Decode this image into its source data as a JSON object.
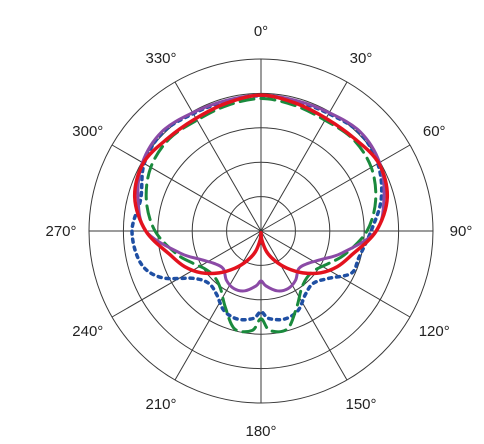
{
  "chart_data": {
    "type": "line",
    "subtype": "polar",
    "title": "",
    "xlabel": "",
    "ylabel": "",
    "grid": true,
    "legend": "none",
    "angle_direction": "clockwise",
    "zero_angle": "top",
    "r_range": [
      0,
      5
    ],
    "rings": [
      1,
      2,
      3,
      4,
      5
    ],
    "angle_ticks": [
      {
        "deg": 0,
        "label": "0°"
      },
      {
        "deg": 30,
        "label": "30°"
      },
      {
        "deg": 60,
        "label": "60°"
      },
      {
        "deg": 90,
        "label": "90°"
      },
      {
        "deg": 120,
        "label": "120°"
      },
      {
        "deg": 150,
        "label": "150°"
      },
      {
        "deg": 180,
        "label": "180°"
      },
      {
        "deg": 210,
        "label": "210°"
      },
      {
        "deg": 240,
        "label": "240°"
      },
      {
        "deg": 270,
        "label": "270°"
      },
      {
        "deg": 300,
        "label": "300°"
      },
      {
        "deg": 330,
        "label": "330°"
      }
    ],
    "series": [
      {
        "color": "#1f4fa3",
        "dash": "dotted",
        "theta": [
          0,
          15,
          30,
          45,
          60,
          75,
          90,
          105,
          115,
          125,
          135,
          145,
          155,
          165,
          175,
          180,
          185,
          195,
          205,
          215,
          225,
          235,
          245,
          255,
          270,
          285,
          300,
          315,
          330,
          345
        ],
        "r": [
          3.93,
          3.91,
          3.94,
          4.05,
          3.92,
          3.62,
          3.2,
          2.95,
          2.9,
          2.4,
          2.15,
          2.25,
          2.55,
          2.65,
          2.55,
          2.35,
          2.55,
          2.65,
          2.55,
          2.25,
          2.15,
          2.4,
          3.2,
          3.62,
          3.75,
          3.62,
          3.92,
          4.05,
          3.94,
          3.91
        ]
      },
      {
        "color": "#1a8a3d",
        "dash": "dashed",
        "theta": [
          0,
          15,
          30,
          45,
          60,
          75,
          90,
          105,
          115,
          125,
          135,
          145,
          155,
          165,
          175,
          180,
          185,
          195,
          205,
          215,
          225,
          235,
          245,
          255,
          270,
          285,
          300,
          315,
          330,
          345
        ],
        "r": [
          3.85,
          3.78,
          3.72,
          3.78,
          3.7,
          3.45,
          3.08,
          2.55,
          2.2,
          1.95,
          1.9,
          2.05,
          2.45,
          2.95,
          2.9,
          2.55,
          2.9,
          2.95,
          2.45,
          2.05,
          1.9,
          1.95,
          2.2,
          2.55,
          3.08,
          3.45,
          3.7,
          3.78,
          3.72,
          3.78
        ]
      },
      {
        "color": "#8b4aa6",
        "dash": "solid",
        "theta": [
          0,
          15,
          30,
          45,
          60,
          75,
          90,
          105,
          115,
          125,
          135,
          145,
          155,
          165,
          175,
          180,
          185,
          195,
          205,
          215,
          225,
          235,
          245,
          255,
          270,
          285,
          300,
          315,
          330,
          345
        ],
        "r": [
          3.95,
          3.93,
          3.97,
          4.08,
          3.98,
          3.7,
          3.35,
          2.45,
          1.95,
          1.65,
          1.55,
          1.75,
          1.85,
          1.8,
          1.6,
          1.45,
          1.6,
          1.8,
          1.85,
          1.75,
          1.55,
          1.65,
          1.95,
          2.45,
          3.35,
          3.7,
          3.98,
          4.08,
          3.97,
          3.93
        ]
      },
      {
        "color": "#e3121e",
        "dash": "solid",
        "theta": [
          0,
          15,
          30,
          45,
          60,
          75,
          90,
          105,
          115,
          125,
          135,
          145,
          155,
          165,
          175,
          180,
          185,
          195,
          205,
          215,
          225,
          235,
          245,
          255,
          270,
          285,
          300,
          315,
          330,
          345
        ],
        "r": [
          3.95,
          3.85,
          3.78,
          3.82,
          3.95,
          3.8,
          3.35,
          2.72,
          2.45,
          2.12,
          1.72,
          1.32,
          0.95,
          0.62,
          0.25,
          0.05,
          0.25,
          0.62,
          0.95,
          1.32,
          1.72,
          2.12,
          2.45,
          2.72,
          3.35,
          3.8,
          3.95,
          3.82,
          3.78,
          3.85
        ]
      }
    ]
  }
}
